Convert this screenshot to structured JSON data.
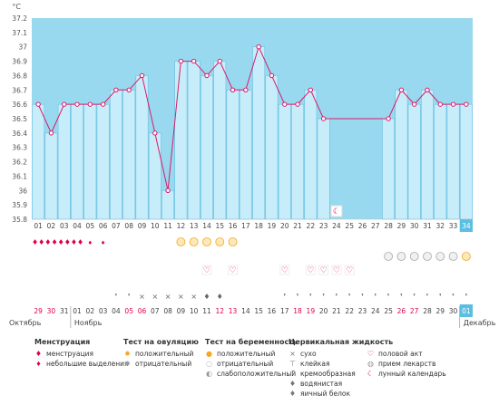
{
  "colors": {
    "band": "#99d9f0",
    "bar_fill": "#c8edfa",
    "bar_stroke": "#5bb8de",
    "line": "#d81b6a",
    "point_stroke": "#d81b6a",
    "accent_red": "#e0004d",
    "current_day_bg": "#5bbfe2"
  },
  "chart_data": {
    "type": "line",
    "title": "",
    "ylabel": "°C",
    "xlabel": "",
    "ylim": [
      35.8,
      37.2
    ],
    "yticks": [
      "37.2",
      "37.1",
      "37",
      "36.9",
      "36.8",
      "36.7",
      "36.6",
      "36.5",
      "36.4",
      "36.3",
      "36.2",
      "36.1",
      "36",
      "35.9",
      "35.8"
    ],
    "coverline": 37.2,
    "cycle_days": [
      "01",
      "02",
      "03",
      "04",
      "05",
      "06",
      "07",
      "08",
      "09",
      "10",
      "11",
      "12",
      "13",
      "14",
      "15",
      "16",
      "17",
      "18",
      "19",
      "20",
      "21",
      "22",
      "23",
      "24",
      "25",
      "26",
      "27",
      "28",
      "29",
      "30",
      "31",
      "32",
      "33",
      "34"
    ],
    "temperatures": [
      36.6,
      36.4,
      36.6,
      36.6,
      36.6,
      36.6,
      36.7,
      36.7,
      36.8,
      36.4,
      36.0,
      36.9,
      36.9,
      36.8,
      36.9,
      36.7,
      36.7,
      37.0,
      36.8,
      36.6,
      36.6,
      36.7,
      36.5,
      36.6,
      36.6,
      36.6,
      36.6,
      36.5,
      36.7,
      36.6,
      36.7,
      36.6,
      36.6,
      36.6
    ],
    "recorded": [
      true,
      true,
      true,
      true,
      true,
      true,
      true,
      true,
      true,
      true,
      true,
      true,
      true,
      true,
      true,
      true,
      true,
      true,
      true,
      true,
      true,
      true,
      true,
      false,
      false,
      false,
      false,
      true,
      true,
      true,
      true,
      true,
      true,
      true
    ],
    "current_day_index": 33,
    "dates": [
      "29",
      "30",
      "31",
      "01",
      "02",
      "03",
      "04",
      "05",
      "06",
      "07",
      "08",
      "09",
      "10",
      "11",
      "12",
      "13",
      "14",
      "15",
      "16",
      "17",
      "18",
      "19",
      "20",
      "21",
      "22",
      "23",
      "24",
      "25",
      "26",
      "27",
      "28",
      "29",
      "30",
      "01"
    ],
    "date_is_red": [
      true,
      true,
      false,
      false,
      false,
      false,
      false,
      true,
      true,
      false,
      false,
      false,
      false,
      false,
      true,
      true,
      false,
      false,
      false,
      false,
      true,
      true,
      false,
      false,
      false,
      false,
      false,
      false,
      true,
      true,
      false,
      false,
      false,
      false
    ],
    "months": [
      {
        "label": "Октябрь",
        "start_index": 0
      },
      {
        "label": "Ноябрь",
        "start_index": 3
      },
      {
        "label": "Декабрь",
        "start_index": 33
      }
    ],
    "menstruation": [
      "menstruation",
      "menstruation",
      "menstruation",
      "menstruation",
      "spotting",
      "spotting",
      "",
      "",
      "",
      "",
      "",
      "",
      "",
      "",
      "",
      "",
      "",
      "",
      "",
      "",
      "",
      "",
      "",
      "",
      "",
      "",
      "",
      "",
      "",
      "",
      "",
      "",
      "",
      ""
    ],
    "ovulation_test": [
      "",
      "",
      "",
      "",
      "",
      "",
      "",
      "",
      "",
      "",
      "",
      "positive",
      "positive",
      "positive",
      "positive",
      "positive",
      "",
      "",
      "",
      "",
      "",
      "",
      "",
      "",
      "",
      "",
      "",
      "",
      "",
      "",
      "",
      "",
      "",
      ""
    ],
    "pregnancy_test": [
      "",
      "",
      "",
      "",
      "",
      "",
      "",
      "",
      "",
      "",
      "",
      "",
      "",
      "",
      "",
      "",
      "",
      "",
      "",
      "",
      "",
      "",
      "",
      "",
      "",
      "",
      "",
      "faint",
      "faint",
      "faint",
      "faint",
      "faint",
      "faint",
      "faint_positive"
    ],
    "intercourse": [
      "",
      "",
      "",
      "",
      "",
      "",
      "",
      "",
      "",
      "",
      "",
      "",
      "",
      "yes",
      "",
      "yes",
      "",
      "",
      "",
      "yes",
      "",
      "yes",
      "yes",
      "yes",
      "yes",
      "",
      "",
      "",
      "",
      "",
      "",
      "",
      "",
      ""
    ],
    "cervical_fluid": [
      "",
      "",
      "",
      "",
      "",
      "",
      "creamy",
      "creamy",
      "dry",
      "dry",
      "dry",
      "dry",
      "dry",
      "watery",
      "watery",
      "",
      "",
      "",
      "",
      "creamy",
      "creamy",
      "creamy",
      "creamy",
      "creamy",
      "creamy",
      "creamy",
      "creamy",
      "creamy",
      "creamy",
      "creamy",
      "creamy",
      "creamy",
      "creamy",
      "creamy"
    ],
    "calendar_marks": [
      "",
      "",
      "",
      "",
      "",
      "",
      "",
      "",
      "",
      "",
      "",
      "",
      "",
      "",
      "",
      "",
      "",
      "",
      "",
      "",
      "",
      "",
      "",
      "moon",
      "",
      "",
      "",
      "",
      "",
      "",
      "",
      "",
      "",
      ""
    ]
  },
  "legend": {
    "menstruation": {
      "title": "Менструация",
      "items": [
        {
          "icon": "menstruation-drops-icon",
          "label": "менструация"
        },
        {
          "icon": "spotting-drop-icon",
          "label": "небольшие выделения"
        }
      ]
    },
    "ovulation": {
      "title": "Тест на овуляцию",
      "items": [
        {
          "icon": "sun-positive-icon",
          "label": "положительный"
        },
        {
          "icon": "sun-negative-icon",
          "label": "отрицательный"
        }
      ]
    },
    "pregnancy": {
      "title": "Тест на беременность",
      "items": [
        {
          "icon": "egg-positive-icon",
          "label": "положительный"
        },
        {
          "icon": "egg-negative-icon",
          "label": "отрицательный"
        },
        {
          "icon": "egg-faint-icon",
          "label": "слабоположительный"
        }
      ]
    },
    "cervical": {
      "title": "Цервикальная жидкость",
      "items": [
        {
          "icon": "dry-cross-icon",
          "label": "сухо"
        },
        {
          "icon": "sticky-icon",
          "label": "клейкая"
        },
        {
          "icon": "creamy-icon",
          "label": "кремообразная"
        },
        {
          "icon": "watery-drop-icon",
          "label": "водянистая"
        },
        {
          "icon": "eggwhite-drop-icon",
          "label": "яичный белок"
        }
      ]
    },
    "other": {
      "title": "",
      "items": [
        {
          "icon": "heart-icon",
          "label": "половой акт"
        },
        {
          "icon": "pill-icon",
          "label": "прием лекарств"
        },
        {
          "icon": "moon-icon",
          "label": "лунный календарь"
        }
      ]
    }
  }
}
